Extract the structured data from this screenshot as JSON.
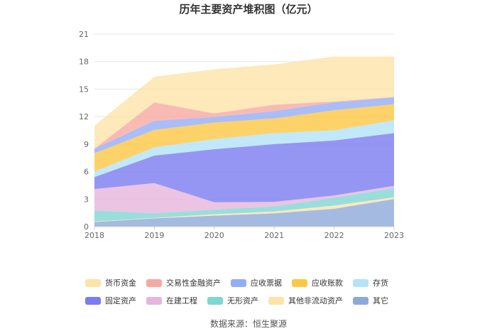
{
  "chart_data": {
    "type": "area",
    "stacked": true,
    "title": "历年主要资产堆积图（亿元）",
    "categories": [
      "2018",
      "2019",
      "2020",
      "2021",
      "2022",
      "2023"
    ],
    "ylim": [
      0,
      21
    ],
    "yticks": [
      0,
      3,
      6,
      9,
      12,
      15,
      18,
      21
    ],
    "grid": true,
    "legend_position": "bottom",
    "series": [
      {
        "name": "其它",
        "color": "#8ea9d8",
        "values": [
          0.5,
          0.9,
          1.2,
          1.45,
          1.95,
          3.0
        ]
      },
      {
        "name": "其他非流动资产",
        "color": "#fde3a8",
        "values": [
          0.05,
          0.05,
          0.15,
          0.2,
          0.35,
          0.2
        ]
      },
      {
        "name": "无形资产",
        "color": "#7fd6d3",
        "values": [
          1.2,
          0.5,
          0.5,
          0.55,
          0.85,
          1.0
        ]
      },
      {
        "name": "在建工程",
        "color": "#e6b4dc",
        "values": [
          2.35,
          3.3,
          0.8,
          0.5,
          0.25,
          0.25
        ]
      },
      {
        "name": "固定资产",
        "color": "#7b7cf0",
        "values": [
          1.3,
          3.0,
          5.8,
          6.3,
          6.0,
          5.75
        ]
      },
      {
        "name": "存货",
        "color": "#b2e3f8",
        "values": [
          0.6,
          0.9,
          1.1,
          1.2,
          1.1,
          1.4
        ]
      },
      {
        "name": "应收账款",
        "color": "#fdc743",
        "values": [
          2.0,
          1.9,
          1.8,
          1.6,
          2.2,
          1.75
        ]
      },
      {
        "name": "应收票据",
        "color": "#93adf6",
        "values": [
          0.5,
          1.0,
          0.6,
          0.8,
          0.85,
          0.75
        ]
      },
      {
        "name": "交易性金融资产",
        "color": "#f7a9a1",
        "values": [
          0.0,
          2.0,
          0.4,
          0.7,
          0.1,
          0.05
        ]
      },
      {
        "name": "货币资金",
        "color": "#fde3a8",
        "values": [
          2.5,
          2.8,
          4.8,
          4.4,
          4.9,
          4.4
        ]
      }
    ],
    "legend_order": [
      "货币资金",
      "交易性金融资产",
      "应收票据",
      "应收账款",
      "存货",
      "固定资产",
      "在建工程",
      "无形资产",
      "其他非流动资产",
      "其它"
    ]
  },
  "source_text": "数据来源：恒生聚源"
}
